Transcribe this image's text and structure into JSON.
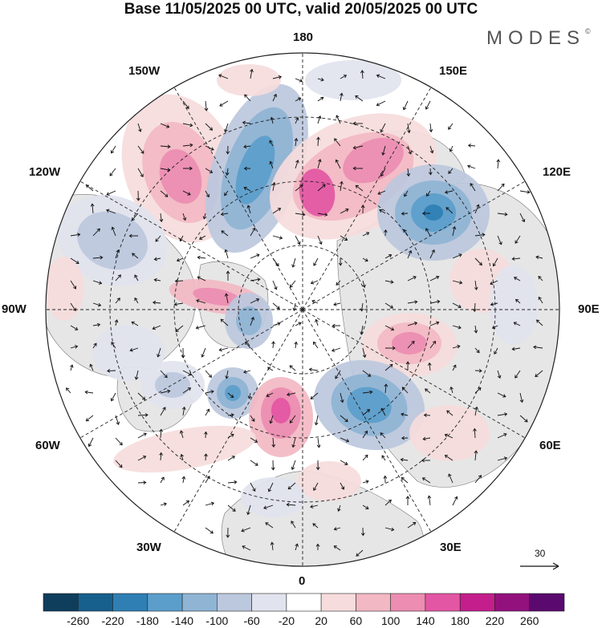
{
  "header": {
    "title": "Base 11/05/2025 00 UTC, valid 20/05/2025 00 UTC",
    "brand": "MODES",
    "brand_mark": "©"
  },
  "map": {
    "projection": "north-polar-stereographic",
    "longitude_labels": {
      "top": "180",
      "top_left": "150W",
      "top_right": "150E",
      "upper_left": "120W",
      "upper_right": "120E",
      "left": "90W",
      "right": "90E",
      "lower_left": "60W",
      "lower_right": "60E",
      "bottom_left": "30W",
      "bottom_right": "30E",
      "bottom": "0"
    },
    "reference_vector_label": "30",
    "colors": {
      "land": "#e6e6e6",
      "ocean": "#ffffff",
      "graticule": "#222222"
    }
  },
  "colorbar": {
    "labels": [
      "-260",
      "-220",
      "-180",
      "-140",
      "-100",
      "-60",
      "-20",
      "20",
      "60",
      "100",
      "140",
      "180",
      "220",
      "260"
    ],
    "colors": [
      "#0f3d5c",
      "#175f8c",
      "#2f7fb5",
      "#5b9ecb",
      "#8fb4d4",
      "#bcc8dd",
      "#e1e3ee",
      "#ffffff",
      "#f6dcdc",
      "#f2b8c3",
      "#ec8db1",
      "#e356a3",
      "#c41e8c",
      "#93117d",
      "#5a0a6e"
    ]
  }
}
